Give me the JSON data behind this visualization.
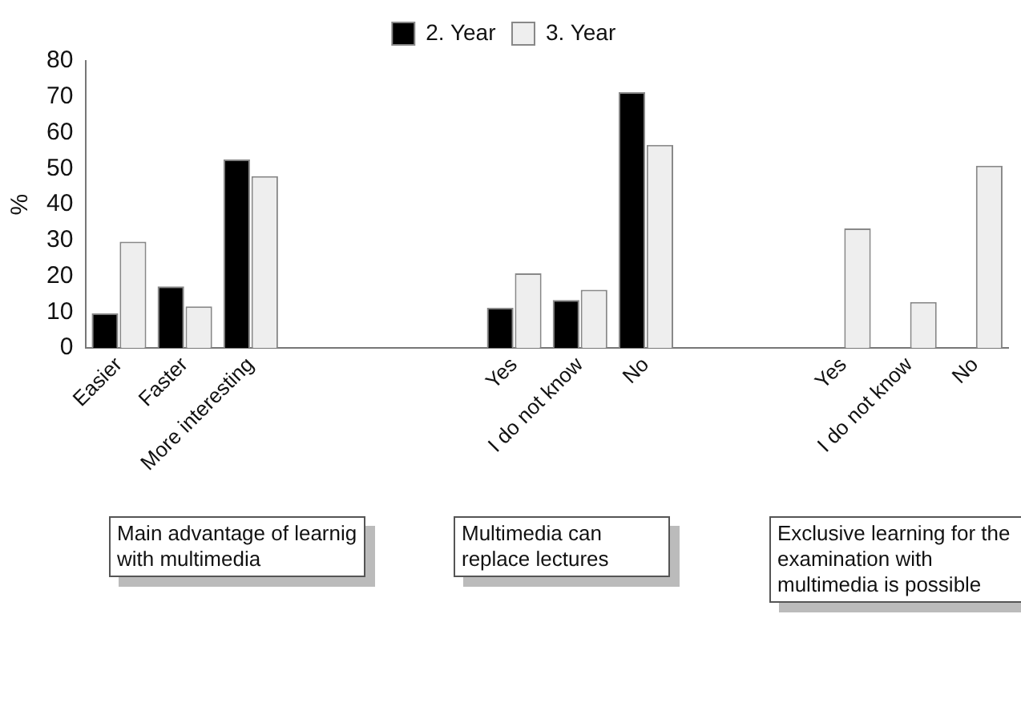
{
  "chart_data": {
    "type": "bar",
    "ylabel": "%",
    "categories": [
      "Easier",
      "Faster",
      "More interesting",
      null,
      null,
      null,
      "Yes",
      "I do not know",
      "No",
      null,
      null,
      "Yes",
      "I do not know",
      "No"
    ],
    "series": [
      {
        "name": "2. Year",
        "color": "#000000",
        "values": [
          9.7,
          17.2,
          52.6,
          null,
          null,
          null,
          11.2,
          13.4,
          71.3,
          null,
          null,
          null,
          null,
          null
        ]
      },
      {
        "name": "3. Year",
        "color": "#eeeeee",
        "values": [
          29.6,
          11.6,
          47.9,
          null,
          null,
          null,
          20.8,
          16.2,
          56.6,
          null,
          null,
          33.3,
          12.8,
          50.8
        ]
      }
    ],
    "ylim": [
      0,
      80
    ],
    "yticks": [
      0,
      10,
      20,
      30,
      40,
      50,
      60,
      70,
      80
    ],
    "grid": false,
    "legend": "top",
    "annotations": [
      "Main advantage of learnig with multimedia",
      "Multimedia can replace lectures",
      "Exclusive learning for the examination with multimedia is possible"
    ]
  }
}
